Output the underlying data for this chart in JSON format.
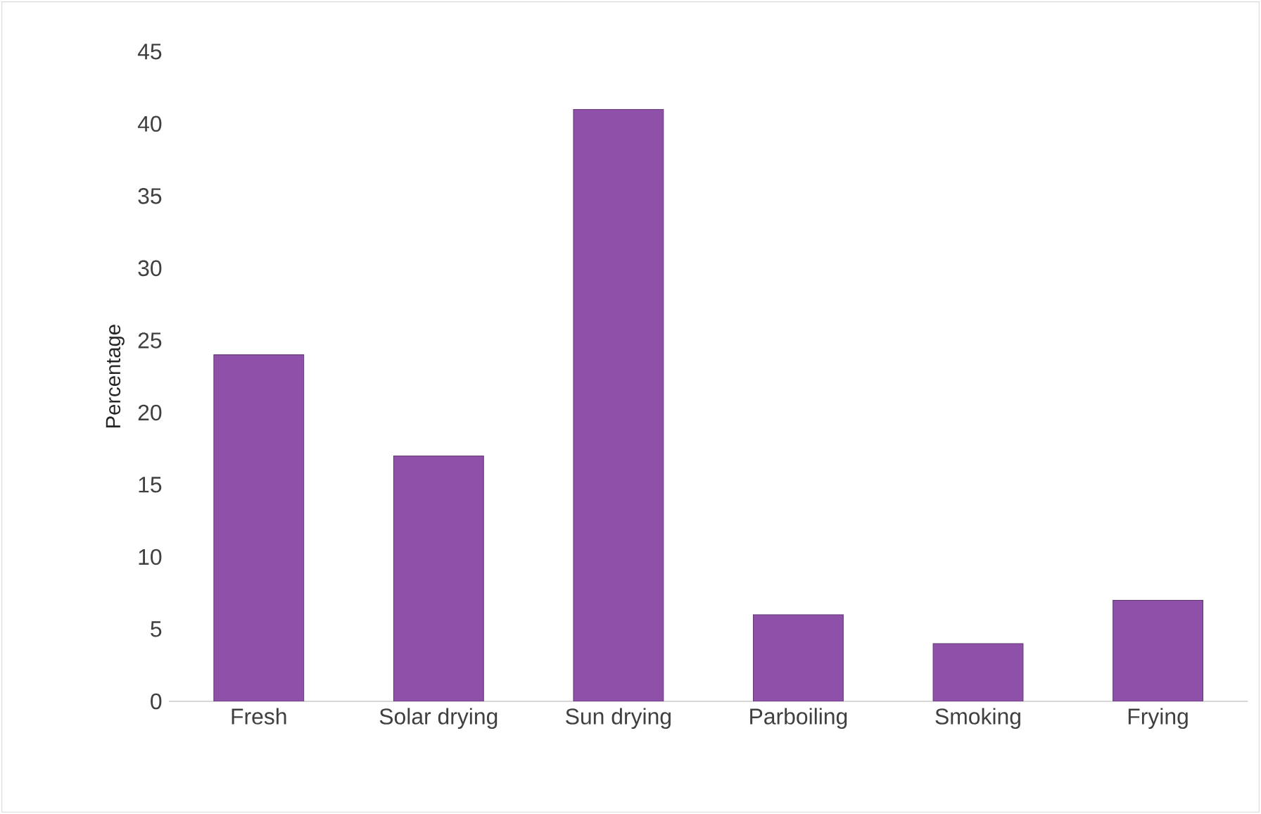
{
  "chart_data": {
    "type": "bar",
    "ylabel": "Percentage",
    "categories": [
      "Fresh",
      "Solar  drying",
      "Sun drying",
      "Parboiling",
      "Smoking",
      "Frying"
    ],
    "values": [
      24,
      17,
      41,
      6,
      4,
      7
    ],
    "color": "#8e50a8",
    "ylim": [
      0,
      45
    ],
    "yticks": [
      0,
      5,
      10,
      15,
      20,
      25,
      30,
      35,
      40,
      45
    ]
  }
}
